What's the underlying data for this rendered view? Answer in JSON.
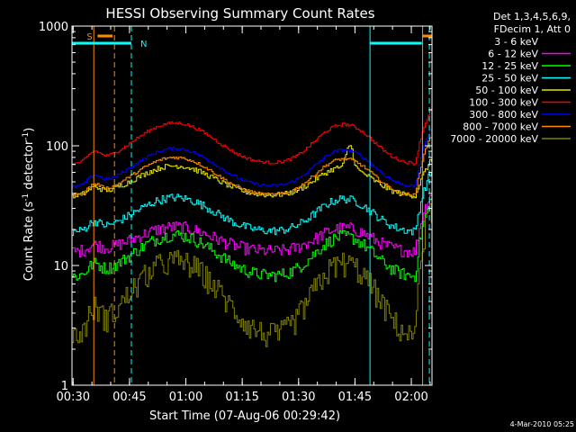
{
  "chart_data": {
    "type": "line",
    "title": "HESSI Observing Summary Count Rates",
    "xlabel": "Start Time (07-Aug-06 00:29:42)",
    "ylabel_main": "Count Rate (s",
    "ylabel_sup1": "-1",
    "ylabel_mid": " detector",
    "ylabel_sup2": "-1",
    "ylabel_end": ")",
    "yscale": "log",
    "ylim": [
      1,
      1000
    ],
    "xlim_minutes": [
      29.7,
      125.5
    ],
    "x_ticks": [
      {
        "label": "00:30",
        "minutes": 30
      },
      {
        "label": "00:45",
        "minutes": 45
      },
      {
        "label": "01:00",
        "minutes": 60
      },
      {
        "label": "01:15",
        "minutes": 75
      },
      {
        "label": "01:30",
        "minutes": 90
      },
      {
        "label": "01:45",
        "minutes": 105
      },
      {
        "label": "02:00",
        "minutes": 120
      }
    ],
    "y_ticks": [
      {
        "label": "1",
        "value": 1
      },
      {
        "label": "10",
        "value": 10
      },
      {
        "label": "100",
        "value": 100
      },
      {
        "label": "1000",
        "value": 1000
      }
    ],
    "legend_header": [
      "Det 1,3,4,5,6,9,",
      "FDecim 1, Att 0"
    ],
    "legend_position": "right",
    "series": [
      {
        "name": "3 - 6 keV",
        "color": "#000000",
        "base": 2.0,
        "amp": 8,
        "w": 40,
        "noise": 0.35,
        "floor": 2.0,
        "end": 35
      },
      {
        "name": "6 - 12 keV",
        "color": "#ff00ff",
        "base": 13,
        "amp": 8,
        "w": 22,
        "noise": 0.12,
        "end": 40
      },
      {
        "name": "12 - 25 keV",
        "color": "#00ff00",
        "base": 8,
        "amp": 10,
        "w": 22,
        "noise": 0.12,
        "end": 35
      },
      {
        "name": "25 - 50 keV",
        "color": "#00ffff",
        "base": 19,
        "amp": 18,
        "w": 18,
        "noise": 0.08,
        "end": 60
      },
      {
        "name": "50 - 100 keV",
        "color": "#e6e600",
        "base": 38,
        "amp": 30,
        "w": 10,
        "noise": 0.05,
        "end": 75
      },
      {
        "name": "100 - 300 keV",
        "color": "#ff0000",
        "base": 70,
        "amp": 85,
        "w": 3,
        "noise": 0.03,
        "end": 200
      },
      {
        "name": "300 - 800 keV",
        "color": "#0000ff",
        "base": 45,
        "amp": 50,
        "w": 3,
        "noise": 0.03,
        "end": 140
      },
      {
        "name": "800 - 7000 keV",
        "color": "#ff8c00",
        "base": 38,
        "amp": 42,
        "w": 3,
        "noise": 0.03,
        "end": 120
      },
      {
        "name": "7000 - 20000 keV",
        "color": "#808000",
        "base": 2.4,
        "amp": 8.5,
        "w": 40,
        "noise": 0.25,
        "floor": 2.4,
        "end": 30
      }
    ],
    "markers": [
      {
        "label": "S",
        "color": "#ff8c00",
        "bar_minutes": [
          36.5,
          40.5
        ]
      },
      {
        "label": "N",
        "color": "#00ffff",
        "bar_minutes": [
          29.7,
          45.5
        ]
      }
    ],
    "marker_lines": [
      {
        "minutes": 35.5,
        "color": "#ff8c00",
        "dashed": false
      },
      {
        "minutes": 41.0,
        "color": "#ff8c00",
        "dashed": true
      },
      {
        "minutes": 45.5,
        "color": "#00ffff",
        "dashed": true
      },
      {
        "minutes": 109.0,
        "color": "#00ffff",
        "dashed": false
      },
      {
        "minutes": 123.0,
        "color": "#ff8c00",
        "dashed": false
      },
      {
        "minutes": 124.8,
        "color": "#00ffff",
        "dashed": true
      }
    ],
    "right_bars": [
      {
        "color": "#00ffff",
        "bar_minutes": [
          109.0,
          122.8
        ]
      },
      {
        "color": "#ff8c00",
        "bar_minutes": [
          123.0,
          125.5
        ]
      }
    ]
  },
  "footer": {
    "timestamp": "4-Mar-2010 05:25"
  }
}
